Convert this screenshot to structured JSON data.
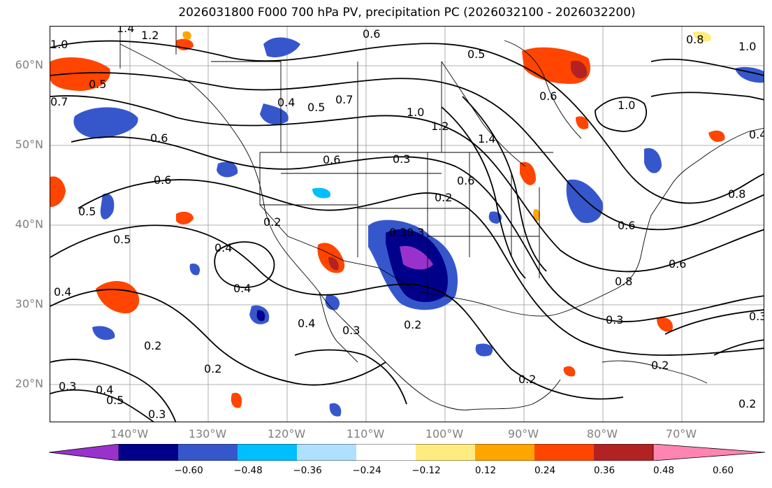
{
  "title": "2026031800 F000 700 hPa PV, precipitation PC (2026032100 - 2026032200)",
  "latitudes": [
    "60°N",
    "50°N",
    "40°N",
    "30°N",
    "20°N"
  ],
  "longitudes": [
    "140°W",
    "130°W",
    "120°W",
    "110°W",
    "100°W",
    "90°W",
    "80°W",
    "70°W"
  ],
  "contour_labels": [
    "1.4",
    "1.2",
    "0.6",
    "1.0",
    "0.8",
    "1.0",
    "0.5",
    "0.7",
    "0.5",
    "0.4",
    "0.5",
    "0.7",
    "1.0",
    "1.2",
    "1.4",
    "0.6",
    "1.0",
    "0.6",
    "0.6",
    "0.3",
    "0.6",
    "0.6",
    "0.5",
    "0.5",
    "0.2",
    "0.4",
    "0.3",
    "0.3",
    "0.4",
    "0.2",
    "0.6",
    "0.8",
    "0.6",
    "0.2",
    "0.4",
    "0.3",
    "0.2",
    "0.3",
    "0.4",
    "0.2",
    "0.2",
    "0.8",
    "0.4",
    "0.3",
    "0.3",
    "0.5",
    "0.2",
    "0.4",
    "0.3",
    "0.2"
  ],
  "colorbar": {
    "colors": [
      "#9932cc",
      "#00008b",
      "#3657cc",
      "#00bfff",
      "#b0e0ff",
      "#ffffff",
      "#ffec80",
      "#ffa500",
      "#ff4500",
      "#b22222",
      "#ff85b0"
    ],
    "labels": [
      "−0.60",
      "−0.48",
      "−0.36",
      "−0.24",
      "−0.12",
      "0.12",
      "0.24",
      "0.36",
      "0.48",
      "0.60"
    ]
  },
  "precip_colors": {
    "strong_neg": "#00008b",
    "mid_neg": "#3657cc",
    "light_neg": "#00bfff",
    "extreme_neg": "#9932cc",
    "mid_pos": "#ff4500",
    "strong_pos": "#b22222",
    "light_pos": "#ffa500",
    "lightest_pos": "#ffec80"
  }
}
